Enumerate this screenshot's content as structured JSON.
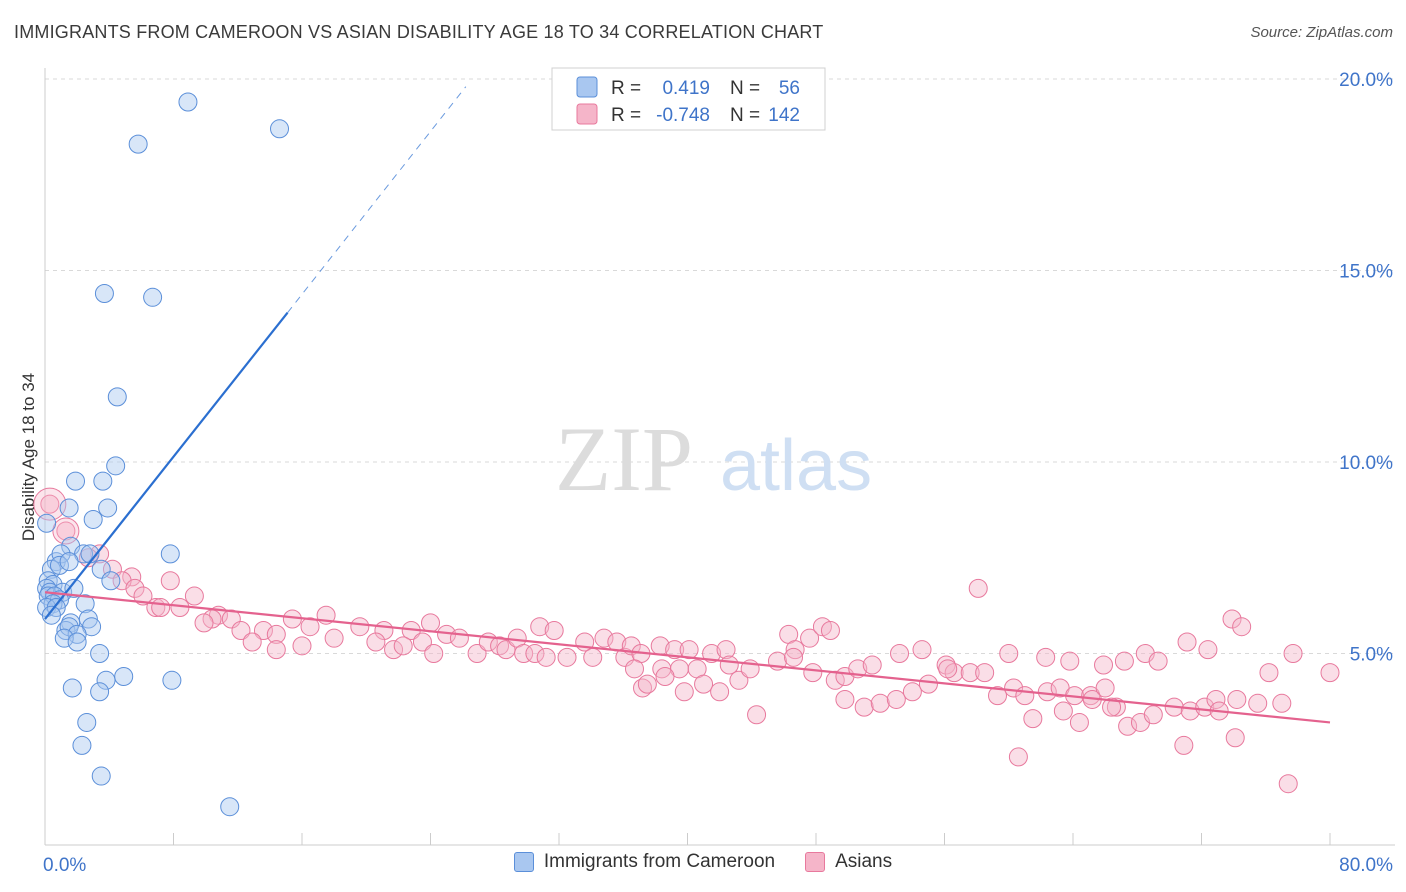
{
  "header": {
    "title": "IMMIGRANTS FROM CAMEROON VS ASIAN DISABILITY AGE 18 TO 34 CORRELATION CHART",
    "source": "Source: ZipAtlas.com"
  },
  "colors": {
    "blue_fill": "#a9c7f0",
    "blue_stroke": "#5b8fd9",
    "blue_line": "#2b6fd0",
    "pink_fill": "#f5b5c9",
    "pink_stroke": "#e8799d",
    "pink_line": "#e4628e",
    "grid": "#d9d9d9",
    "tick_label": "#3f74c9"
  },
  "legend": {
    "rows": [
      {
        "r_label": "R =",
        "r_value": "0.419",
        "n_label": "N =",
        "n_value": "56",
        "color": "blue"
      },
      {
        "r_label": "R =",
        "r_value": "-0.748",
        "n_label": "N =",
        "n_value": "142",
        "color": "pink"
      }
    ]
  },
  "watermark": {
    "zip": "ZIP",
    "atlas": "atlas"
  },
  "chart_data": {
    "type": "scatter",
    "title": "IMMIGRANTS FROM CAMEROON VS ASIAN DISABILITY AGE 18 TO 34 CORRELATION CHART",
    "xlabel": "",
    "ylabel": "Disability Age 18 to 34",
    "xlim": [
      0,
      80
    ],
    "ylim": [
      0,
      20
    ],
    "x_tick_labels": [
      "0.0%",
      "80.0%"
    ],
    "y_ticks": [
      5,
      10,
      15,
      20
    ],
    "y_tick_labels": [
      "5.0%",
      "10.0%",
      "15.0%",
      "20.0%"
    ],
    "grid": true,
    "legend_position": "top-center",
    "series": [
      {
        "name": "Immigrants from Cameroon",
        "color": "blue",
        "r": 0.419,
        "n": 56,
        "trendline": {
          "x": [
            0,
            15.1
          ],
          "y": [
            5.9,
            13.9
          ],
          "dashed_extension": {
            "x": [
              15.1,
              26.2
            ],
            "y": [
              13.9,
              19.8
            ]
          }
        },
        "points": [
          [
            8.9,
            19.4
          ],
          [
            5.8,
            18.3
          ],
          [
            14.6,
            18.7
          ],
          [
            3.7,
            14.4
          ],
          [
            6.7,
            14.3
          ],
          [
            4.5,
            11.7
          ],
          [
            4.4,
            9.9
          ],
          [
            1.9,
            9.5
          ],
          [
            3.6,
            9.5
          ],
          [
            1.5,
            8.8
          ],
          [
            3.9,
            8.8
          ],
          [
            3.0,
            8.5
          ],
          [
            0.1,
            8.4
          ],
          [
            1.6,
            7.8
          ],
          [
            0.7,
            7.4
          ],
          [
            1.0,
            7.6
          ],
          [
            2.4,
            7.6
          ],
          [
            2.8,
            7.6
          ],
          [
            7.8,
            7.6
          ],
          [
            0.4,
            7.2
          ],
          [
            0.9,
            7.3
          ],
          [
            1.5,
            7.4
          ],
          [
            3.5,
            7.2
          ],
          [
            4.1,
            6.9
          ],
          [
            0.2,
            6.9
          ],
          [
            0.5,
            6.8
          ],
          [
            0.1,
            6.7
          ],
          [
            0.3,
            6.6
          ],
          [
            0.2,
            6.5
          ],
          [
            1.1,
            6.6
          ],
          [
            1.8,
            6.7
          ],
          [
            0.6,
            6.5
          ],
          [
            0.9,
            6.4
          ],
          [
            0.5,
            6.3
          ],
          [
            0.1,
            6.2
          ],
          [
            0.7,
            6.2
          ],
          [
            2.5,
            6.3
          ],
          [
            1.6,
            5.8
          ],
          [
            2.7,
            5.9
          ],
          [
            2.9,
            5.7
          ],
          [
            1.3,
            5.6
          ],
          [
            1.5,
            5.7
          ],
          [
            2.0,
            5.5
          ],
          [
            1.2,
            5.4
          ],
          [
            2.0,
            5.3
          ],
          [
            3.4,
            5.0
          ],
          [
            1.7,
            4.1
          ],
          [
            3.8,
            4.3
          ],
          [
            4.9,
            4.4
          ],
          [
            3.4,
            4.0
          ],
          [
            7.9,
            4.3
          ],
          [
            2.6,
            3.2
          ],
          [
            2.3,
            2.6
          ],
          [
            3.5,
            1.8
          ],
          [
            11.5,
            1.0
          ],
          [
            0.4,
            6.0
          ]
        ]
      },
      {
        "name": "Asians",
        "color": "pink",
        "r": -0.748,
        "n": 142,
        "trendline": {
          "x": [
            0,
            80
          ],
          "y": [
            6.6,
            3.2
          ]
        },
        "points": [
          [
            0.3,
            8.9
          ],
          [
            1.3,
            8.2
          ],
          [
            3.4,
            7.6
          ],
          [
            2.7,
            7.5
          ],
          [
            4.2,
            7.2
          ],
          [
            5.4,
            7.0
          ],
          [
            4.8,
            6.9
          ],
          [
            7.8,
            6.9
          ],
          [
            5.6,
            6.7
          ],
          [
            6.1,
            6.5
          ],
          [
            9.3,
            6.5
          ],
          [
            6.9,
            6.2
          ],
          [
            7.2,
            6.2
          ],
          [
            8.4,
            6.2
          ],
          [
            10.8,
            6.0
          ],
          [
            10.4,
            5.9
          ],
          [
            11.6,
            5.9
          ],
          [
            9.9,
            5.8
          ],
          [
            12.2,
            5.6
          ],
          [
            13.6,
            5.6
          ],
          [
            15.4,
            5.9
          ],
          [
            16.5,
            5.7
          ],
          [
            17.5,
            6.0
          ],
          [
            14.4,
            5.5
          ],
          [
            18.0,
            5.4
          ],
          [
            12.9,
            5.3
          ],
          [
            16.0,
            5.2
          ],
          [
            14.4,
            5.1
          ],
          [
            19.6,
            5.7
          ],
          [
            21.1,
            5.6
          ],
          [
            22.8,
            5.6
          ],
          [
            20.6,
            5.3
          ],
          [
            21.7,
            5.1
          ],
          [
            22.3,
            5.2
          ],
          [
            23.5,
            5.3
          ],
          [
            24.0,
            5.8
          ],
          [
            25.0,
            5.5
          ],
          [
            25.8,
            5.4
          ],
          [
            24.2,
            5.0
          ],
          [
            26.9,
            5.0
          ],
          [
            27.6,
            5.3
          ],
          [
            28.3,
            5.2
          ],
          [
            28.7,
            5.1
          ],
          [
            29.4,
            5.4
          ],
          [
            30.8,
            5.7
          ],
          [
            31.7,
            5.6
          ],
          [
            29.8,
            5.0
          ],
          [
            30.5,
            5.0
          ],
          [
            31.2,
            4.9
          ],
          [
            32.5,
            4.9
          ],
          [
            33.6,
            5.3
          ],
          [
            34.8,
            5.4
          ],
          [
            35.6,
            5.3
          ],
          [
            34.1,
            4.9
          ],
          [
            36.1,
            4.9
          ],
          [
            36.5,
            5.2
          ],
          [
            37.1,
            5.0
          ],
          [
            38.3,
            5.2
          ],
          [
            39.2,
            5.1
          ],
          [
            40.1,
            5.1
          ],
          [
            36.7,
            4.6
          ],
          [
            38.4,
            4.6
          ],
          [
            39.5,
            4.6
          ],
          [
            40.6,
            4.6
          ],
          [
            41.0,
            4.2
          ],
          [
            41.5,
            5.0
          ],
          [
            42.4,
            5.1
          ],
          [
            37.2,
            4.1
          ],
          [
            37.5,
            4.2
          ],
          [
            38.6,
            4.4
          ],
          [
            39.8,
            4.0
          ],
          [
            42.0,
            4.0
          ],
          [
            42.6,
            4.7
          ],
          [
            43.2,
            4.3
          ],
          [
            43.9,
            4.6
          ],
          [
            44.3,
            3.4
          ],
          [
            45.6,
            4.8
          ],
          [
            46.3,
            5.5
          ],
          [
            46.7,
            5.1
          ],
          [
            47.6,
            5.4
          ],
          [
            48.4,
            5.7
          ],
          [
            48.9,
            5.6
          ],
          [
            46.6,
            4.9
          ],
          [
            47.8,
            4.5
          ],
          [
            49.2,
            4.3
          ],
          [
            49.8,
            4.4
          ],
          [
            50.6,
            4.6
          ],
          [
            51.5,
            4.7
          ],
          [
            49.8,
            3.8
          ],
          [
            51.0,
            3.6
          ],
          [
            52.0,
            3.7
          ],
          [
            53.0,
            3.8
          ],
          [
            54.0,
            4.0
          ],
          [
            55.0,
            4.2
          ],
          [
            56.1,
            4.7
          ],
          [
            53.2,
            5.0
          ],
          [
            54.6,
            5.1
          ],
          [
            56.6,
            4.5
          ],
          [
            57.6,
            4.5
          ],
          [
            58.5,
            4.5
          ],
          [
            59.3,
            3.9
          ],
          [
            60.3,
            4.1
          ],
          [
            61.0,
            3.9
          ],
          [
            61.5,
            3.3
          ],
          [
            62.4,
            4.0
          ],
          [
            63.2,
            4.1
          ],
          [
            64.1,
            3.9
          ],
          [
            65.1,
            3.9
          ],
          [
            66.0,
            4.1
          ],
          [
            64.4,
            3.2
          ],
          [
            65.2,
            3.8
          ],
          [
            66.7,
            3.6
          ],
          [
            67.4,
            3.1
          ],
          [
            68.2,
            3.2
          ],
          [
            69.0,
            3.4
          ],
          [
            70.3,
            3.6
          ],
          [
            71.3,
            3.5
          ],
          [
            72.2,
            3.6
          ],
          [
            72.9,
            3.8
          ],
          [
            73.1,
            3.5
          ],
          [
            74.2,
            3.8
          ],
          [
            75.5,
            3.7
          ],
          [
            77.0,
            3.7
          ],
          [
            60.0,
            5.0
          ],
          [
            62.3,
            4.9
          ],
          [
            63.8,
            4.8
          ],
          [
            65.9,
            4.7
          ],
          [
            67.2,
            4.8
          ],
          [
            68.5,
            5.0
          ],
          [
            69.3,
            4.8
          ],
          [
            71.1,
            5.3
          ],
          [
            72.4,
            5.1
          ],
          [
            73.9,
            5.9
          ],
          [
            74.5,
            5.7
          ],
          [
            76.2,
            4.5
          ],
          [
            77.7,
            5.0
          ],
          [
            58.1,
            6.7
          ],
          [
            56.2,
            4.6
          ],
          [
            66.4,
            3.6
          ],
          [
            60.6,
            2.3
          ],
          [
            63.4,
            3.5
          ],
          [
            77.4,
            1.6
          ],
          [
            70.9,
            2.6
          ],
          [
            74.1,
            2.8
          ],
          [
            80.0,
            4.5
          ]
        ]
      }
    ]
  },
  "bottom_legend": {
    "items": [
      {
        "label": "Immigrants from Cameroon"
      },
      {
        "label": "Asians"
      }
    ]
  }
}
